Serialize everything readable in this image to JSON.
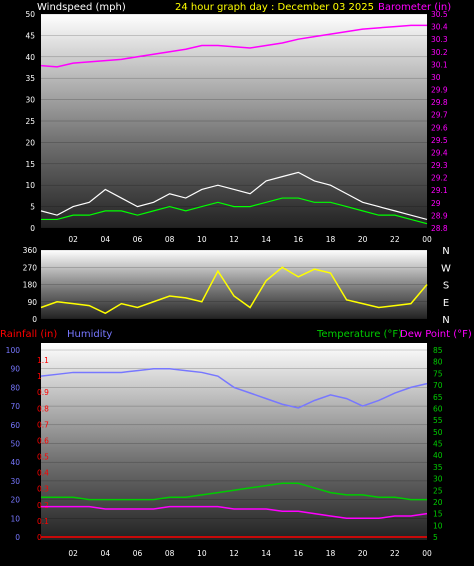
{
  "header": {
    "left": "Windspeed (mph)",
    "center": "24 hour graph day : December 03 2025",
    "right": "Barometer (in)"
  },
  "colors": {
    "windspeed": "#ffffff",
    "wind_avg": "#00ff00",
    "barometer": "#ff00ff",
    "direction": "#ffff00",
    "rain": "#ff0000",
    "humidity": "#7777ff",
    "temperature": "#00cc00",
    "dewpoint": "#ff00ff",
    "header": "#ffff00"
  },
  "x_ticks": [
    "02",
    "04",
    "06",
    "08",
    "10",
    "12",
    "14",
    "16",
    "18",
    "20",
    "22",
    "00"
  ],
  "compass": [
    "N",
    "W",
    "S",
    "E",
    "N"
  ],
  "bottom_header": {
    "rain": "Rainfall (in)",
    "humidity": "Humidity",
    "temperature": "Temperature (°F)",
    "dewpoint": "Dew Point (°F)"
  },
  "chart_data": [
    {
      "type": "line",
      "title": "24 hour graph day : December 03 2025",
      "ylabel": "Windspeed (mph)",
      "y2label": "Barometer (in)",
      "ylim": [
        0,
        50
      ],
      "y2lim": [
        28.8,
        30.5
      ],
      "yticks": [
        "0",
        "5",
        "10",
        "15",
        "20",
        "25",
        "30",
        "35",
        "40",
        "45",
        "50"
      ],
      "y2ticks": [
        "28.8",
        "28.9",
        "29",
        "29.1",
        "29.2",
        "29.3",
        "29.4",
        "29.5",
        "29.6",
        "29.7",
        "29.8",
        "29.9",
        "30",
        "30.1",
        "30.2",
        "30.3",
        "30.4",
        "30.5"
      ],
      "x": [
        0,
        1,
        2,
        3,
        4,
        5,
        6,
        7,
        8,
        9,
        10,
        11,
        12,
        13,
        14,
        15,
        16,
        17,
        18,
        19,
        20,
        21,
        22,
        23,
        24
      ],
      "series": [
        {
          "name": "Windspeed (mph)",
          "values": [
            4,
            3,
            5,
            6,
            9,
            7,
            5,
            6,
            8,
            7,
            9,
            10,
            9,
            8,
            11,
            12,
            13,
            11,
            10,
            8,
            6,
            5,
            4,
            3,
            2
          ]
        },
        {
          "name": "Barometer (in)",
          "values": [
            30.09,
            30.08,
            30.11,
            30.12,
            30.13,
            30.14,
            30.16,
            30.18,
            30.2,
            30.22,
            30.25,
            30.25,
            30.24,
            30.23,
            30.25,
            30.27,
            30.3,
            30.32,
            30.34,
            30.36,
            30.38,
            30.39,
            30.4,
            30.41,
            30.41
          ]
        }
      ],
      "series_avg": {
        "values": [
          2,
          2,
          3,
          3,
          4,
          4,
          3,
          4,
          5,
          4,
          5,
          6,
          5,
          5,
          6,
          7,
          7,
          6,
          6,
          5,
          4,
          3,
          3,
          2,
          1
        ]
      }
    },
    {
      "type": "line",
      "title": "",
      "ylim": [
        0,
        360
      ],
      "yticks": [
        "0",
        "90",
        "180",
        "270",
        "360"
      ],
      "x": [
        0,
        1,
        2,
        3,
        4,
        5,
        6,
        7,
        8,
        9,
        10,
        11,
        12,
        13,
        14,
        15,
        16,
        17,
        18,
        19,
        20,
        21,
        22,
        23,
        24
      ],
      "series": [
        {
          "name": "Wind direction",
          "values": [
            60,
            90,
            80,
            70,
            30,
            80,
            60,
            90,
            120,
            110,
            90,
            250,
            120,
            60,
            200,
            270,
            220,
            260,
            240,
            100,
            80,
            60,
            70,
            80,
            180
          ]
        }
      ]
    },
    {
      "type": "line",
      "title": "",
      "yticks_rain": [
        "0",
        "0.1",
        "0.2",
        "0.3",
        "0.4",
        "0.5",
        "0.6",
        "0.7",
        "0.8",
        "0.9",
        "1",
        "1.1"
      ],
      "yticks_humidity": [
        "0",
        "10",
        "20",
        "30",
        "40",
        "50",
        "60",
        "70",
        "80",
        "90",
        "100"
      ],
      "yticks_temp": [
        "5",
        "10",
        "15",
        "20",
        "25",
        "30",
        "35",
        "40",
        "45",
        "50",
        "55",
        "60",
        "65",
        "70",
        "75",
        "80",
        "85"
      ],
      "x": [
        0,
        1,
        2,
        3,
        4,
        5,
        6,
        7,
        8,
        9,
        10,
        11,
        12,
        13,
        14,
        15,
        16,
        17,
        18,
        19,
        20,
        21,
        22,
        23,
        24
      ],
      "series": [
        {
          "name": "Humidity",
          "values": [
            86,
            87,
            88,
            88,
            88,
            88,
            89,
            90,
            90,
            89,
            88,
            86,
            80,
            77,
            74,
            71,
            69,
            73,
            76,
            74,
            70,
            73,
            77,
            80,
            82
          ]
        },
        {
          "name": "Temperature (°F)",
          "values": [
            22,
            22,
            22,
            21,
            21,
            21,
            21,
            21,
            22,
            22,
            23,
            24,
            25,
            26,
            27,
            28,
            28,
            26,
            24,
            23,
            23,
            22,
            22,
            21,
            21
          ]
        },
        {
          "name": "Dew Point (°F)",
          "values": [
            18,
            18,
            18,
            18,
            17,
            17,
            17,
            17,
            18,
            18,
            18,
            18,
            17,
            17,
            17,
            16,
            16,
            15,
            14,
            13,
            13,
            13,
            14,
            14,
            15
          ]
        },
        {
          "name": "Rainfall (in)",
          "values": [
            0,
            0,
            0,
            0,
            0,
            0,
            0,
            0,
            0,
            0,
            0,
            0,
            0,
            0,
            0,
            0,
            0,
            0,
            0,
            0,
            0,
            0,
            0,
            0,
            0
          ]
        }
      ]
    }
  ]
}
